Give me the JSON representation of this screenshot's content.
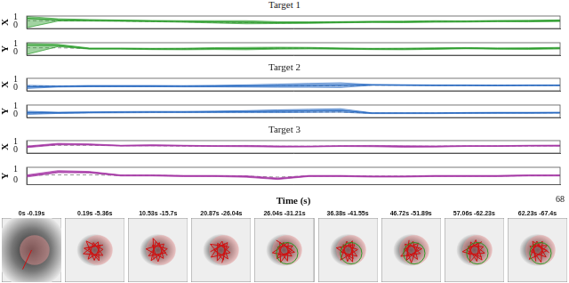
{
  "chart_data": [
    {
      "type": "line",
      "title": "Target 1",
      "y_label": "X",
      "tick_labels": "y",
      "grid": false,
      "xlim": [
        0,
        68
      ],
      "ylim": [
        -0.4,
        1.2
      ],
      "yticks": [
        0,
        1
      ],
      "x": [
        0,
        4,
        8,
        12,
        16,
        20,
        24,
        28,
        32,
        36,
        40,
        44,
        48,
        52,
        56,
        60,
        64,
        68
      ],
      "series": [
        {
          "color": "#2e9e2e",
          "values": [
            0.9,
            0.7,
            0.65,
            0.6,
            0.55,
            0.5,
            0.45,
            0.4,
            0.35,
            0.35,
            0.4,
            0.45,
            0.45,
            0.5,
            0.5,
            0.55,
            0.55,
            0.6
          ],
          "lower": [
            -0.3,
            0.55,
            0.55,
            0.52,
            0.47,
            0.4,
            0.3,
            0.2,
            0.23,
            0.25,
            0.32,
            0.37,
            0.35,
            0.4,
            0.42,
            0.47,
            0.45,
            0.5
          ],
          "upper": [
            1.15,
            0.85,
            0.75,
            0.68,
            0.63,
            0.6,
            0.6,
            0.6,
            0.47,
            0.45,
            0.48,
            0.53,
            0.55,
            0.6,
            0.58,
            0.63,
            0.65,
            0.7
          ]
        },
        {
          "color": "#888888",
          "line_style": "dashed",
          "values": [
            0.6,
            0.6,
            0.6,
            0.55,
            0.5,
            0.45,
            0.4,
            0.35,
            0.3,
            0.35,
            0.4,
            0.45,
            0.45,
            0.5,
            0.5,
            0.55,
            0.55,
            0.6
          ]
        }
      ]
    },
    {
      "type": "line",
      "y_label": "Y",
      "tick_labels": "y",
      "grid": false,
      "xlim": [
        0,
        68
      ],
      "ylim": [
        -0.4,
        1.2
      ],
      "yticks": [
        0,
        1
      ],
      "x": [
        0,
        4,
        8,
        12,
        16,
        20,
        24,
        28,
        32,
        36,
        40,
        44,
        48,
        52,
        56,
        60,
        64,
        68
      ],
      "series": [
        {
          "color": "#2e9e2e",
          "values": [
            0.9,
            0.85,
            0.45,
            0.45,
            0.4,
            0.4,
            0.45,
            0.45,
            0.5,
            0.5,
            0.45,
            0.4,
            0.4,
            0.45,
            0.5,
            0.45,
            0.45,
            0.5
          ],
          "lower": [
            -0.3,
            0.7,
            0.38,
            0.38,
            0.32,
            0.3,
            0.33,
            0.3,
            0.38,
            0.4,
            0.37,
            0.32,
            0.3,
            0.35,
            0.42,
            0.37,
            0.35,
            0.4
          ],
          "upper": [
            1.15,
            1.0,
            0.52,
            0.52,
            0.48,
            0.5,
            0.57,
            0.6,
            0.62,
            0.6,
            0.53,
            0.48,
            0.5,
            0.55,
            0.58,
            0.53,
            0.55,
            0.6
          ]
        },
        {
          "color": "#888888",
          "line_style": "dashed",
          "values": [
            0.55,
            0.55,
            0.45,
            0.45,
            0.42,
            0.42,
            0.45,
            0.45,
            0.5,
            0.5,
            0.45,
            0.42,
            0.42,
            0.45,
            0.48,
            0.45,
            0.45,
            0.48
          ]
        }
      ]
    },
    {
      "type": "line",
      "title": "Target 2",
      "y_label": "X",
      "tick_labels": "y",
      "grid": false,
      "xlim": [
        0,
        68
      ],
      "ylim": [
        -0.4,
        1.2
      ],
      "yticks": [
        0,
        1
      ],
      "x": [
        0,
        4,
        8,
        12,
        16,
        20,
        24,
        28,
        32,
        36,
        40,
        44,
        48,
        52,
        56,
        60,
        64,
        68
      ],
      "series": [
        {
          "color": "#2f6fc4",
          "values": [
            0.1,
            0.15,
            0.2,
            0.2,
            0.2,
            0.18,
            0.2,
            0.22,
            0.25,
            0.3,
            0.32,
            0.35,
            0.33,
            0.3,
            0.3,
            0.28,
            0.3,
            0.3
          ],
          "lower": [
            -0.1,
            0.08,
            0.12,
            0.12,
            0.12,
            0.1,
            0.1,
            0.08,
            0.05,
            0.05,
            0.02,
            0.3,
            0.28,
            0.25,
            0.25,
            0.23,
            0.25,
            0.25
          ],
          "upper": [
            0.3,
            0.22,
            0.28,
            0.28,
            0.28,
            0.26,
            0.3,
            0.36,
            0.45,
            0.55,
            0.62,
            0.4,
            0.38,
            0.35,
            0.35,
            0.33,
            0.35,
            0.35
          ]
        },
        {
          "color": "#888888",
          "line_style": "dashed",
          "values": [
            0.2,
            0.2,
            0.2,
            0.2,
            0.2,
            0.2,
            0.2,
            0.22,
            0.24,
            0.26,
            0.28,
            0.32,
            0.32,
            0.3,
            0.3,
            0.3,
            0.3,
            0.3
          ]
        }
      ]
    },
    {
      "type": "line",
      "y_label": "Y",
      "tick_labels": "y",
      "grid": false,
      "xlim": [
        0,
        68
      ],
      "ylim": [
        -0.4,
        1.2
      ],
      "yticks": [
        0,
        1
      ],
      "x": [
        0,
        4,
        8,
        12,
        16,
        20,
        24,
        28,
        32,
        36,
        40,
        44,
        48,
        52,
        56,
        60,
        64,
        68
      ],
      "series": [
        {
          "color": "#2f6fc4",
          "values": [
            0.2,
            0.2,
            0.25,
            0.28,
            0.3,
            0.3,
            0.32,
            0.35,
            0.4,
            0.45,
            0.5,
            0.15,
            0.15,
            0.15,
            0.18,
            0.2,
            0.2,
            0.22
          ],
          "lower": [
            0,
            0.12,
            0.18,
            0.2,
            0.22,
            0.22,
            0.22,
            0.22,
            0.22,
            0.25,
            0.28,
            0.1,
            0.1,
            0.1,
            0.12,
            0.14,
            0.14,
            0.16
          ],
          "upper": [
            0.4,
            0.28,
            0.32,
            0.36,
            0.38,
            0.38,
            0.42,
            0.48,
            0.58,
            0.65,
            0.72,
            0.2,
            0.2,
            0.2,
            0.24,
            0.26,
            0.26,
            0.28
          ]
        },
        {
          "color": "#888888",
          "line_style": "dashed",
          "values": [
            0.2,
            0.2,
            0.22,
            0.25,
            0.28,
            0.3,
            0.3,
            0.3,
            0.3,
            0.3,
            0.3,
            0.15,
            0.15,
            0.15,
            0.18,
            0.2,
            0.2,
            0.2
          ]
        }
      ]
    },
    {
      "type": "line",
      "title": "Target 3",
      "y_label": "X",
      "tick_labels": "y",
      "grid": false,
      "xlim": [
        0,
        68
      ],
      "ylim": [
        -0.4,
        1.2
      ],
      "yticks": [
        0,
        1
      ],
      "x": [
        0,
        4,
        8,
        12,
        16,
        20,
        24,
        28,
        32,
        36,
        40,
        44,
        48,
        52,
        56,
        60,
        64,
        68
      ],
      "series": [
        {
          "color": "#a63aa6",
          "values": [
            0.4,
            0.75,
            0.7,
            0.55,
            0.6,
            0.55,
            0.5,
            0.5,
            0.45,
            0.45,
            0.5,
            0.5,
            0.45,
            0.45,
            0.5,
            0.5,
            0.55,
            0.55
          ],
          "lower": [
            0.3,
            0.65,
            0.62,
            0.5,
            0.55,
            0.5,
            0.45,
            0.42,
            0.38,
            0.4,
            0.45,
            0.42,
            0.35,
            0.38,
            0.45,
            0.45,
            0.5,
            0.48
          ],
          "upper": [
            0.5,
            0.85,
            0.78,
            0.6,
            0.65,
            0.6,
            0.55,
            0.58,
            0.52,
            0.5,
            0.55,
            0.58,
            0.55,
            0.52,
            0.55,
            0.55,
            0.6,
            0.62
          ]
        },
        {
          "color": "#888888",
          "line_style": "dashed",
          "values": [
            0.5,
            0.6,
            0.6,
            0.55,
            0.55,
            0.5,
            0.5,
            0.5,
            0.48,
            0.48,
            0.5,
            0.5,
            0.48,
            0.48,
            0.5,
            0.5,
            0.52,
            0.55
          ]
        }
      ]
    },
    {
      "type": "line",
      "y_label": "Y",
      "x_label": "Time (s)",
      "grid": false,
      "xlim": [
        0,
        68
      ],
      "xticks": [
        68
      ],
      "ylim": [
        -0.4,
        1.2
      ],
      "yticks": [
        0,
        1
      ],
      "x": [
        0,
        4,
        8,
        12,
        16,
        20,
        24,
        28,
        32,
        36,
        40,
        44,
        48,
        52,
        56,
        60,
        64,
        68
      ],
      "series": [
        {
          "color": "#a63aa6",
          "values": [
            0.4,
            0.8,
            0.75,
            0.45,
            0.45,
            0.4,
            0.4,
            0.35,
            0.15,
            0.4,
            0.4,
            0.35,
            0.35,
            0.4,
            0.4,
            0.4,
            0.45,
            0.45
          ],
          "lower": [
            0.3,
            0.7,
            0.68,
            0.4,
            0.4,
            0.35,
            0.35,
            0.28,
            0.08,
            0.35,
            0.35,
            0.3,
            0.3,
            0.35,
            0.35,
            0.35,
            0.4,
            0.4
          ],
          "upper": [
            0.5,
            0.9,
            0.82,
            0.5,
            0.5,
            0.45,
            0.45,
            0.42,
            0.22,
            0.45,
            0.45,
            0.4,
            0.4,
            0.45,
            0.45,
            0.45,
            0.5,
            0.5
          ]
        },
        {
          "color": "#888888",
          "line_style": "dashed",
          "values": [
            0.45,
            0.5,
            0.5,
            0.45,
            0.45,
            0.42,
            0.4,
            0.38,
            0.3,
            0.4,
            0.4,
            0.38,
            0.38,
            0.4,
            0.4,
            0.4,
            0.42,
            0.45
          ]
        }
      ]
    }
  ],
  "panels": [
    "0s -0.19s",
    "0.19s -5.36s",
    "10.53s -15.7s",
    "20.87s -26.04s",
    "26.04s -31.21s",
    "36.38s -41.55s",
    "46.72s -51.89s",
    "57.06s -62.23s",
    "62.23s -67.4s"
  ]
}
